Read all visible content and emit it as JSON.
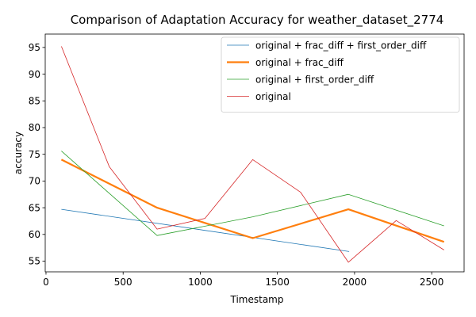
{
  "chart_data": {
    "type": "line",
    "title": "Comparison of Adaptation Accuracy for weather_dataset_2774",
    "xlabel": "Timestamp",
    "ylabel": "accuracy",
    "xlim": [
      -5,
      2710
    ],
    "ylim": [
      53.0,
      97.5
    ],
    "xticks": [
      0,
      500,
      1000,
      1500,
      2000,
      2500
    ],
    "yticks": [
      55,
      60,
      65,
      70,
      75,
      80,
      85,
      90,
      95
    ],
    "grid": false,
    "legend_position": "top-right",
    "series": [
      {
        "name": "original + frac_diff + first_order_diff",
        "color": "#1f77b4",
        "width": "thin",
        "x": [
          100,
          1965
        ],
        "y": [
          64.7,
          56.8
        ]
      },
      {
        "name": "original + frac_diff",
        "color": "#ff7f0e",
        "width": "thick",
        "x": [
          100,
          720,
          1340,
          1960,
          2580
        ],
        "y": [
          74.0,
          65.0,
          59.3,
          64.7,
          58.6
        ]
      },
      {
        "name": "original + first_order_diff",
        "color": "#2ca02c",
        "width": "thin",
        "x": [
          100,
          720,
          1340,
          1960,
          2580
        ],
        "y": [
          75.6,
          59.8,
          63.3,
          67.5,
          61.6
        ]
      },
      {
        "name": "original",
        "color": "#d62728",
        "width": "thin",
        "x": [
          100,
          410,
          720,
          1030,
          1340,
          1650,
          1960,
          2270,
          2580
        ],
        "y": [
          95.2,
          72.7,
          61.0,
          63.0,
          74.0,
          67.9,
          54.8,
          62.6,
          57.1
        ]
      }
    ]
  }
}
